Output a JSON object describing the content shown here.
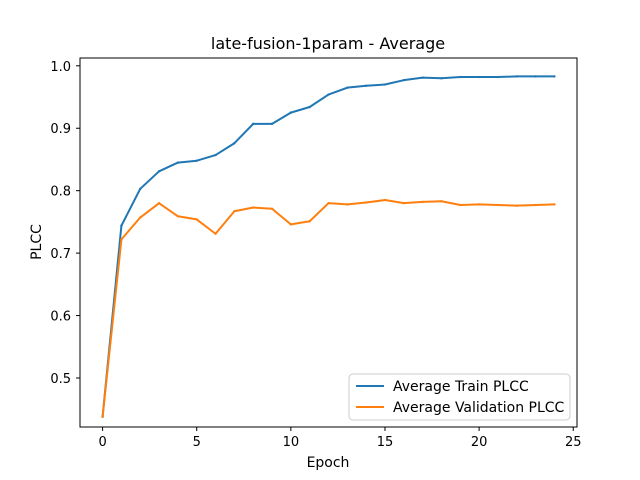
{
  "chart_data": {
    "type": "line",
    "title": "late-fusion-1param - Average",
    "xlabel": "Epoch",
    "ylabel": "PLCC",
    "xlim": [
      -1.2,
      25.2
    ],
    "ylim": [
      0.4215,
      1.0125
    ],
    "xticks": [
      "0",
      "5",
      "10",
      "15",
      "20",
      "25"
    ],
    "yticks": [
      "0.5",
      "0.6",
      "0.7",
      "0.8",
      "0.9",
      "1.0"
    ],
    "legend_position": "lower-right",
    "grid": false,
    "x": [
      0,
      1,
      2,
      3,
      4,
      5,
      6,
      7,
      8,
      9,
      10,
      11,
      12,
      13,
      14,
      15,
      16,
      17,
      18,
      19,
      20,
      21,
      22,
      23,
      24
    ],
    "series": [
      {
        "name": "Average Train PLCC",
        "color": "#1f77b4",
        "values": [
          0.438,
          0.744,
          0.803,
          0.831,
          0.845,
          0.848,
          0.857,
          0.876,
          0.907,
          0.907,
          0.925,
          0.934,
          0.954,
          0.965,
          0.968,
          0.97,
          0.977,
          0.981,
          0.98,
          0.982,
          0.982,
          0.982,
          0.983,
          0.983,
          0.983
        ]
      },
      {
        "name": "Average Validation PLCC",
        "color": "#ff7f0e",
        "values": [
          0.438,
          0.722,
          0.757,
          0.78,
          0.759,
          0.754,
          0.731,
          0.767,
          0.773,
          0.771,
          0.746,
          0.751,
          0.78,
          0.778,
          0.781,
          0.785,
          0.78,
          0.782,
          0.783,
          0.777,
          0.778,
          0.777,
          0.776,
          0.777,
          0.778
        ]
      }
    ]
  }
}
